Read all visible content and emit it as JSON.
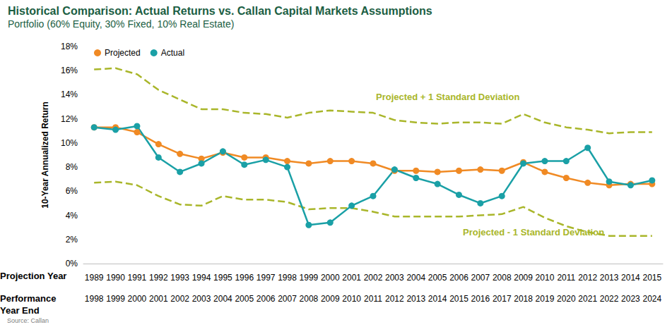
{
  "chart_data": {
    "type": "line",
    "title": "Historical Comparison: Actual Returns vs. Callan Capital Markets Assumptions",
    "subtitle": "Portfolio (60% Equity, 30% Fixed, 10% Real Estate)",
    "source": "Source: Callan",
    "ylabel": "10-Year Annualized Return",
    "xlabel": "Projection Year",
    "xlabel2": "Performance Year End",
    "categories": [
      "1989",
      "1990",
      "1991",
      "1992",
      "1993",
      "1994",
      "1995",
      "1996",
      "1997",
      "1998",
      "1999",
      "2000",
      "2001",
      "2002",
      "2003",
      "2004",
      "2005",
      "2006",
      "2007",
      "2008",
      "2009",
      "2010",
      "2011",
      "2012",
      "2013",
      "2014",
      "2015"
    ],
    "categories2": [
      "1998",
      "1999",
      "2000",
      "2001",
      "2002",
      "2003",
      "2004",
      "2005",
      "2006",
      "2007",
      "2008",
      "2009",
      "2010",
      "2011",
      "2012",
      "2013",
      "2014",
      "2015",
      "2016",
      "2017",
      "2018",
      "2019",
      "2020",
      "2021",
      "2022",
      "2023",
      "2024"
    ],
    "ylim": [
      0,
      18
    ],
    "yticks": [
      {
        "value": 0,
        "label": "0%"
      },
      {
        "value": 2,
        "label": "2%"
      },
      {
        "value": 4,
        "label": "4%"
      },
      {
        "value": 6,
        "label": "6%"
      },
      {
        "value": 8,
        "label": "8%"
      },
      {
        "value": 10,
        "label": "10%"
      },
      {
        "value": 12,
        "label": "12%"
      },
      {
        "value": 14,
        "label": "14%"
      },
      {
        "value": 16,
        "label": "16%"
      },
      {
        "value": 18,
        "label": "18%"
      }
    ],
    "grid": false,
    "legend": "top-left",
    "series": [
      {
        "name": "Projected + 1 Standard Deviation",
        "color": "#A9B62A",
        "marker": "none",
        "line_style": "dashed",
        "values": [
          16.1,
          16.2,
          15.7,
          14.4,
          13.6,
          12.8,
          12.8,
          12.5,
          12.4,
          12.1,
          12.5,
          12.7,
          12.6,
          12.5,
          11.9,
          11.7,
          11.6,
          11.7,
          11.7,
          11.6,
          12.4,
          11.7,
          11.3,
          11.1,
          10.8,
          10.9,
          10.9
        ]
      },
      {
        "name": "Projected - 1 Standard Deviation",
        "color": "#A9B62A",
        "marker": "none",
        "line_style": "dashed",
        "values": [
          6.7,
          6.8,
          6.5,
          5.6,
          4.9,
          4.8,
          5.6,
          5.3,
          5.3,
          5.1,
          4.5,
          4.6,
          4.6,
          4.3,
          3.9,
          3.9,
          3.9,
          3.9,
          4.0,
          4.1,
          4.7,
          3.8,
          3.1,
          2.6,
          2.3,
          2.3,
          2.3
        ]
      },
      {
        "name": "Projected",
        "color": "#F08A24",
        "marker": "circle",
        "line_style": "solid",
        "values": [
          11.3,
          11.3,
          10.9,
          9.9,
          9.1,
          8.7,
          9.2,
          8.8,
          8.8,
          8.5,
          8.3,
          8.5,
          8.5,
          8.3,
          7.7,
          7.7,
          7.6,
          7.7,
          7.8,
          7.7,
          8.4,
          7.6,
          7.1,
          6.7,
          6.5,
          6.6,
          6.6
        ]
      },
      {
        "name": "Actual",
        "color": "#1AA0A6",
        "marker": "circle",
        "line_style": "solid",
        "values": [
          11.3,
          11.1,
          11.4,
          8.8,
          7.6,
          8.3,
          9.3,
          8.2,
          8.6,
          8.0,
          3.2,
          3.4,
          4.8,
          5.6,
          7.8,
          7.1,
          6.6,
          5.7,
          5.0,
          5.6,
          8.3,
          8.5,
          8.5,
          9.6,
          6.8,
          6.5,
          6.9
        ]
      }
    ]
  }
}
